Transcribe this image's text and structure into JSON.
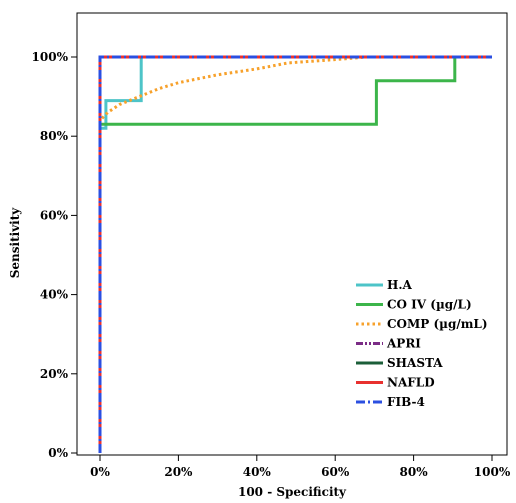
{
  "chart_data": {
    "type": "line",
    "title": "",
    "xlabel": "100 - Specificity",
    "ylabel": "Sensitivity",
    "xlim": [
      0,
      100
    ],
    "ylim": [
      0,
      100
    ],
    "x_ticks": [
      "0%",
      "20%",
      "40%",
      "60%",
      "80%",
      "100%"
    ],
    "y_ticks": [
      "0%",
      "20%",
      "40%",
      "60%",
      "80%",
      "100%"
    ],
    "x_tick_values": [
      0,
      20,
      40,
      60,
      80,
      100
    ],
    "y_tick_values": [
      0,
      20,
      40,
      60,
      80,
      100
    ],
    "grid": false,
    "legend_position": "bottom-right",
    "series": [
      {
        "name": "H.A",
        "color": "#4dc4c8",
        "dash": "solid",
        "points": [
          [
            0,
            0
          ],
          [
            0,
            82
          ],
          [
            1.5,
            82
          ],
          [
            1.5,
            89
          ],
          [
            10.5,
            89
          ],
          [
            10.5,
            100
          ],
          [
            100,
            100
          ]
        ]
      },
      {
        "name": "CO IV (µg/L)",
        "color": "#3cb54a",
        "dash": "solid",
        "points": [
          [
            0,
            0
          ],
          [
            0,
            83
          ],
          [
            70.5,
            83
          ],
          [
            70.5,
            94
          ],
          [
            90.5,
            94
          ],
          [
            90.5,
            100
          ],
          [
            100,
            100
          ]
        ]
      },
      {
        "name": "COMP (µg/mL)",
        "color": "#f7a12b",
        "dash": "dot",
        "points": [
          [
            0,
            0
          ],
          [
            0,
            84
          ],
          [
            2,
            86
          ],
          [
            5,
            88
          ],
          [
            10,
            90
          ],
          [
            15,
            92
          ],
          [
            20,
            93.5
          ],
          [
            30,
            95.5
          ],
          [
            40,
            97
          ],
          [
            48,
            98.5
          ],
          [
            55,
            99
          ],
          [
            62,
            99.5
          ],
          [
            68,
            100
          ],
          [
            100,
            100
          ]
        ]
      },
      {
        "name": "APRI",
        "color": "#7b2c86",
        "dash": "dashdotdot",
        "points": [
          [
            0,
            0
          ],
          [
            0,
            100
          ],
          [
            100,
            100
          ]
        ]
      },
      {
        "name": "SHASTA",
        "color": "#1b5e38",
        "dash": "solid",
        "points": [
          [
            0,
            0
          ],
          [
            0,
            100
          ],
          [
            100,
            100
          ]
        ]
      },
      {
        "name": "NAFLD",
        "color": "#e8312f",
        "dash": "solid",
        "points": [
          [
            0,
            0
          ],
          [
            0,
            100
          ],
          [
            100,
            100
          ]
        ]
      },
      {
        "name": "FIB-4",
        "color": "#2b4fe0",
        "dash": "dashdot",
        "points": [
          [
            0,
            0
          ],
          [
            0,
            100
          ],
          [
            100,
            100
          ]
        ]
      }
    ]
  }
}
